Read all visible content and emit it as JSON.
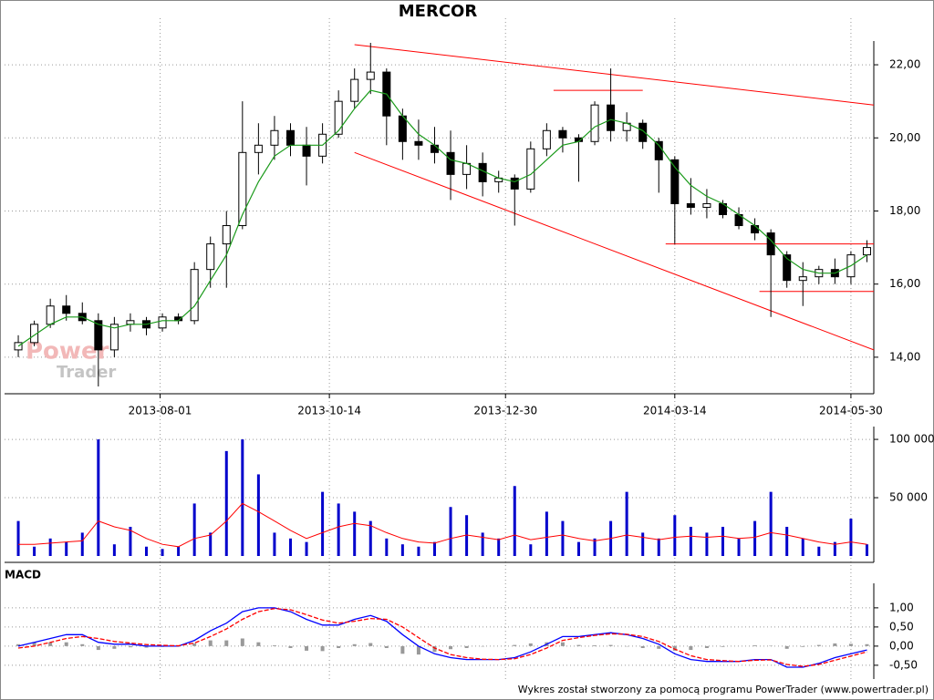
{
  "chart_data": [
    {
      "type": "candlestick",
      "title": "MERCOR",
      "x": [
        "2013-05-31",
        "2013-06-07",
        "2013-06-14",
        "2013-06-21",
        "2013-06-28",
        "2013-07-05",
        "2013-07-12",
        "2013-07-19",
        "2013-07-26",
        "2013-08-02",
        "2013-08-09",
        "2013-08-16",
        "2013-08-23",
        "2013-08-30",
        "2013-09-06",
        "2013-09-13",
        "2013-09-20",
        "2013-09-27",
        "2013-10-04",
        "2013-10-11",
        "2013-10-18",
        "2013-10-25",
        "2013-11-01",
        "2013-11-08",
        "2013-11-15",
        "2013-11-22",
        "2013-11-29",
        "2013-12-06",
        "2013-12-13",
        "2013-12-20",
        "2013-12-27",
        "2014-01-03",
        "2014-01-10",
        "2014-01-17",
        "2014-01-24",
        "2014-01-31",
        "2014-02-07",
        "2014-02-14",
        "2014-02-21",
        "2014-02-28",
        "2014-03-07",
        "2014-03-14",
        "2014-03-21",
        "2014-03-28",
        "2014-04-04",
        "2014-04-11",
        "2014-04-18",
        "2014-04-25",
        "2014-05-02",
        "2014-05-09",
        "2014-05-16",
        "2014-05-23",
        "2014-05-30",
        "2014-06-06"
      ],
      "open": [
        14.2,
        14.4,
        14.9,
        15.4,
        15.2,
        15.0,
        14.2,
        14.9,
        15.0,
        14.8,
        15.1,
        15.0,
        16.4,
        17.1,
        17.6,
        19.6,
        19.8,
        20.2,
        19.8,
        19.5,
        20.1,
        21.0,
        21.6,
        21.8,
        20.6,
        19.9,
        19.8,
        19.6,
        19.0,
        19.3,
        18.8,
        18.9,
        18.6,
        19.7,
        20.2,
        20.0,
        19.9,
        20.9,
        20.2,
        20.4,
        19.9,
        19.4,
        18.2,
        18.1,
        18.2,
        17.9,
        17.6,
        17.4,
        16.8,
        16.1,
        16.2,
        16.4,
        16.2,
        16.8
      ],
      "high": [
        14.6,
        15.0,
        15.6,
        15.7,
        15.5,
        15.2,
        15.1,
        15.2,
        15.1,
        15.2,
        15.2,
        16.6,
        17.3,
        18.0,
        21.0,
        20.4,
        20.6,
        20.4,
        20.3,
        20.4,
        21.3,
        21.9,
        22.6,
        21.9,
        20.8,
        20.5,
        20.3,
        20.2,
        19.8,
        19.6,
        19.1,
        19.0,
        19.9,
        20.4,
        20.3,
        20.1,
        21.0,
        21.9,
        20.7,
        20.5,
        20.0,
        19.5,
        18.9,
        18.6,
        18.3,
        18.1,
        17.8,
        17.5,
        16.9,
        16.6,
        16.5,
        16.7,
        16.9,
        17.2
      ],
      "low": [
        14.0,
        14.3,
        14.8,
        15.0,
        14.9,
        13.2,
        14.0,
        14.7,
        14.6,
        14.7,
        14.9,
        14.9,
        15.9,
        15.9,
        17.5,
        19.0,
        19.4,
        19.5,
        18.7,
        19.3,
        20.0,
        20.8,
        21.2,
        19.8,
        19.4,
        19.4,
        19.3,
        18.3,
        18.6,
        18.4,
        18.5,
        17.6,
        18.5,
        19.5,
        19.6,
        18.8,
        19.8,
        19.9,
        19.9,
        19.7,
        18.5,
        17.1,
        17.9,
        17.8,
        17.8,
        17.5,
        17.2,
        15.1,
        15.9,
        15.4,
        16.0,
        16.0,
        16.0,
        16.6
      ],
      "close": [
        14.4,
        14.9,
        15.4,
        15.2,
        15.0,
        14.2,
        14.9,
        15.0,
        14.8,
        15.1,
        15.0,
        16.4,
        17.1,
        17.6,
        19.6,
        19.8,
        20.2,
        19.8,
        19.5,
        20.1,
        21.0,
        21.6,
        21.8,
        20.6,
        19.9,
        19.8,
        19.6,
        19.0,
        19.3,
        18.8,
        18.9,
        18.6,
        19.7,
        20.2,
        20.0,
        19.9,
        20.9,
        20.2,
        20.4,
        19.9,
        19.4,
        18.2,
        18.1,
        18.2,
        17.9,
        17.6,
        17.4,
        16.8,
        16.1,
        16.2,
        16.4,
        16.2,
        16.8,
        17.0
      ],
      "up_color": "#ffffff",
      "down_color": "#000000",
      "moving_average": {
        "color": "#1a9a1a",
        "values": [
          14.3,
          14.6,
          14.9,
          15.1,
          15.1,
          14.9,
          14.8,
          14.9,
          14.9,
          15.0,
          15.0,
          15.4,
          16.1,
          16.8,
          17.9,
          18.8,
          19.5,
          19.8,
          19.8,
          19.8,
          20.2,
          20.8,
          21.3,
          21.2,
          20.6,
          20.1,
          19.8,
          19.4,
          19.3,
          19.1,
          18.9,
          18.8,
          19.0,
          19.4,
          19.8,
          19.9,
          20.3,
          20.5,
          20.4,
          20.2,
          19.8,
          19.2,
          18.7,
          18.4,
          18.2,
          17.9,
          17.6,
          17.2,
          16.7,
          16.4,
          16.3,
          16.3,
          16.5,
          16.8
        ]
      },
      "trendline_color": "#ff0000",
      "trendlines": [
        {
          "x": [
            "2013-10-25",
            "2014-06-09"
          ],
          "y": [
            22.55,
            20.9
          ]
        },
        {
          "x": [
            "2013-10-25",
            "2014-06-09"
          ],
          "y": [
            19.6,
            14.2
          ]
        },
        {
          "x": [
            "2014-01-20",
            "2014-02-28"
          ],
          "y": [
            21.3,
            21.3
          ]
        },
        {
          "x": [
            "2014-03-10",
            "2014-06-09"
          ],
          "y": [
            17.1,
            17.1
          ]
        },
        {
          "x": [
            "2014-04-20",
            "2014-06-09"
          ],
          "y": [
            15.8,
            15.8
          ]
        }
      ],
      "watermark": [
        "Power",
        "Trader"
      ],
      "xlim": [
        "2013-05-25",
        "2014-06-09"
      ],
      "xticks": [
        "2013-08-01",
        "2013-10-14",
        "2013-12-30",
        "2014-03-14",
        "2014-05-30"
      ],
      "ylim": [
        13.0,
        22.65
      ],
      "yticks": [
        {
          "value": 14,
          "label": "14,00"
        },
        {
          "value": 16,
          "label": "16,00"
        },
        {
          "value": 18,
          "label": "18,00"
        },
        {
          "value": 20,
          "label": "20,00"
        },
        {
          "value": 22,
          "label": "22,00"
        }
      ],
      "grid": true
    },
    {
      "type": "bar",
      "color": "#0000cc",
      "values": [
        30000,
        8000,
        15000,
        12000,
        20000,
        100000,
        10000,
        25000,
        8000,
        6000,
        8000,
        45000,
        20000,
        90000,
        100000,
        70000,
        20000,
        15000,
        12000,
        55000,
        45000,
        38000,
        30000,
        15000,
        10000,
        8000,
        12000,
        42000,
        35000,
        20000,
        15000,
        60000,
        10000,
        38000,
        30000,
        12000,
        15000,
        30000,
        55000,
        20000,
        15000,
        35000,
        25000,
        20000,
        25000,
        15000,
        30000,
        55000,
        25000,
        15000,
        8000,
        12000,
        32000,
        10000
      ],
      "moving_average": {
        "color": "#ff0000",
        "values": [
          10000,
          10000,
          11000,
          12000,
          13000,
          30000,
          25000,
          22000,
          15000,
          10000,
          8000,
          15000,
          18000,
          30000,
          45000,
          38000,
          30000,
          22000,
          15000,
          20000,
          25000,
          28000,
          26000,
          20000,
          15000,
          12000,
          11000,
          15000,
          18000,
          16000,
          14000,
          18000,
          14000,
          16000,
          18000,
          15000,
          13000,
          15000,
          18000,
          16000,
          14000,
          16000,
          17000,
          16000,
          17000,
          15000,
          16000,
          20000,
          18000,
          15000,
          12000,
          10000,
          12000,
          10000
        ]
      },
      "ylim": [
        0,
        111000
      ],
      "yticks": [
        {
          "value": 50000,
          "label": "50 000"
        },
        {
          "value": 100000,
          "label": "100 000"
        }
      ]
    },
    {
      "type": "macd",
      "title": "MACD",
      "macd": {
        "color": "#0000ff",
        "values": [
          0.0,
          0.1,
          0.2,
          0.3,
          0.3,
          0.1,
          0.05,
          0.05,
          0.0,
          0.0,
          0.0,
          0.15,
          0.4,
          0.6,
          0.9,
          1.0,
          1.0,
          0.9,
          0.7,
          0.55,
          0.55,
          0.7,
          0.8,
          0.65,
          0.3,
          0.0,
          -0.2,
          -0.3,
          -0.35,
          -0.35,
          -0.35,
          -0.3,
          -0.15,
          0.05,
          0.25,
          0.25,
          0.3,
          0.35,
          0.3,
          0.2,
          0.05,
          -0.2,
          -0.35,
          -0.4,
          -0.4,
          -0.4,
          -0.35,
          -0.35,
          -0.55,
          -0.55,
          -0.45,
          -0.3,
          -0.2,
          -0.1
        ]
      },
      "signal": {
        "color": "#ff0000",
        "values": [
          -0.05,
          0.0,
          0.1,
          0.2,
          0.25,
          0.2,
          0.12,
          0.08,
          0.04,
          0.02,
          0.01,
          0.08,
          0.25,
          0.45,
          0.7,
          0.9,
          0.98,
          0.95,
          0.82,
          0.68,
          0.6,
          0.65,
          0.72,
          0.7,
          0.5,
          0.22,
          -0.05,
          -0.22,
          -0.3,
          -0.34,
          -0.35,
          -0.33,
          -0.22,
          -0.05,
          0.15,
          0.22,
          0.28,
          0.32,
          0.31,
          0.25,
          0.12,
          -0.08,
          -0.25,
          -0.35,
          -0.38,
          -0.4,
          -0.37,
          -0.36,
          -0.48,
          -0.53,
          -0.48,
          -0.37,
          -0.26,
          -0.15
        ]
      },
      "histogram": {
        "color": "#999999",
        "values": [
          0.05,
          0.1,
          0.1,
          0.1,
          0.05,
          -0.1,
          -0.07,
          -0.03,
          -0.04,
          -0.02,
          -0.01,
          0.07,
          0.15,
          0.15,
          0.2,
          0.1,
          0.02,
          -0.05,
          -0.12,
          -0.13,
          -0.05,
          0.05,
          0.08,
          -0.05,
          -0.2,
          -0.22,
          -0.15,
          -0.08,
          -0.05,
          -0.01,
          0.0,
          0.03,
          0.07,
          0.1,
          0.1,
          0.03,
          0.02,
          0.03,
          -0.01,
          -0.05,
          -0.07,
          -0.12,
          -0.1,
          -0.05,
          -0.02,
          0.0,
          0.02,
          0.01,
          -0.07,
          -0.02,
          0.03,
          0.07,
          0.06,
          0.05
        ]
      },
      "ylim": [
        -0.86,
        1.64
      ],
      "yticks": [
        {
          "value": -0.5,
          "label": "-0,50"
        },
        {
          "value": 0,
          "label": "0,00"
        },
        {
          "value": 0.5,
          "label": "0,50"
        },
        {
          "value": 1,
          "label": "1,00"
        }
      ]
    }
  ],
  "footer": "Wykres został stworzony za pomocą programu PowerTrader (www.powertrader.pl)"
}
